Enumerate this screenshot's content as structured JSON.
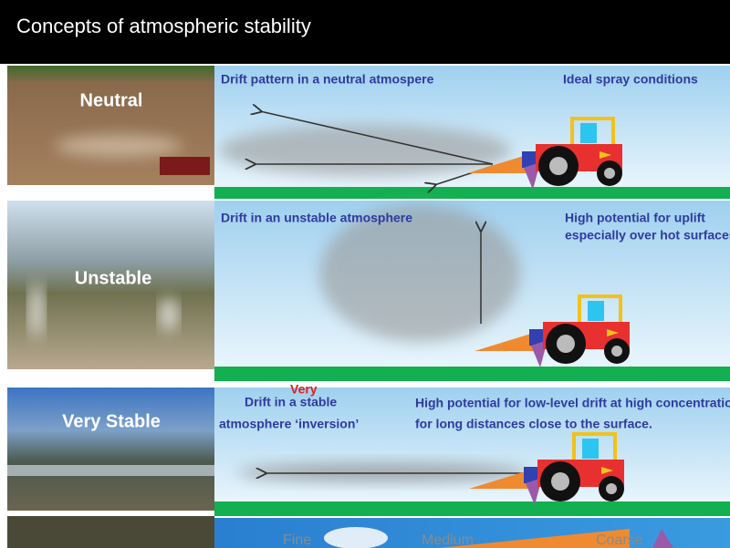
{
  "header": {
    "title": "Concepts of atmospheric stability"
  },
  "panels": [
    {
      "label": "Neutral",
      "heading": [
        "Drift pattern in a neutral atmospere"
      ],
      "note": [
        "Ideal spray conditions"
      ]
    },
    {
      "label": "Unstable",
      "heading": [
        "Drift in an unstable atmosphere"
      ],
      "note": [
        "High potential for uplift",
        "especially over hot surfaces"
      ]
    },
    {
      "label": "Very Stable",
      "insert": "Very",
      "heading": [
        "Drift in a stable",
        "atmosphere ‘inversion’"
      ],
      "note": [
        "High potential for low-level drift at high concentration",
        "for long distances close to the surface."
      ]
    }
  ],
  "droplet_scale": [
    "Fine",
    "Medium",
    "Coarse"
  ]
}
